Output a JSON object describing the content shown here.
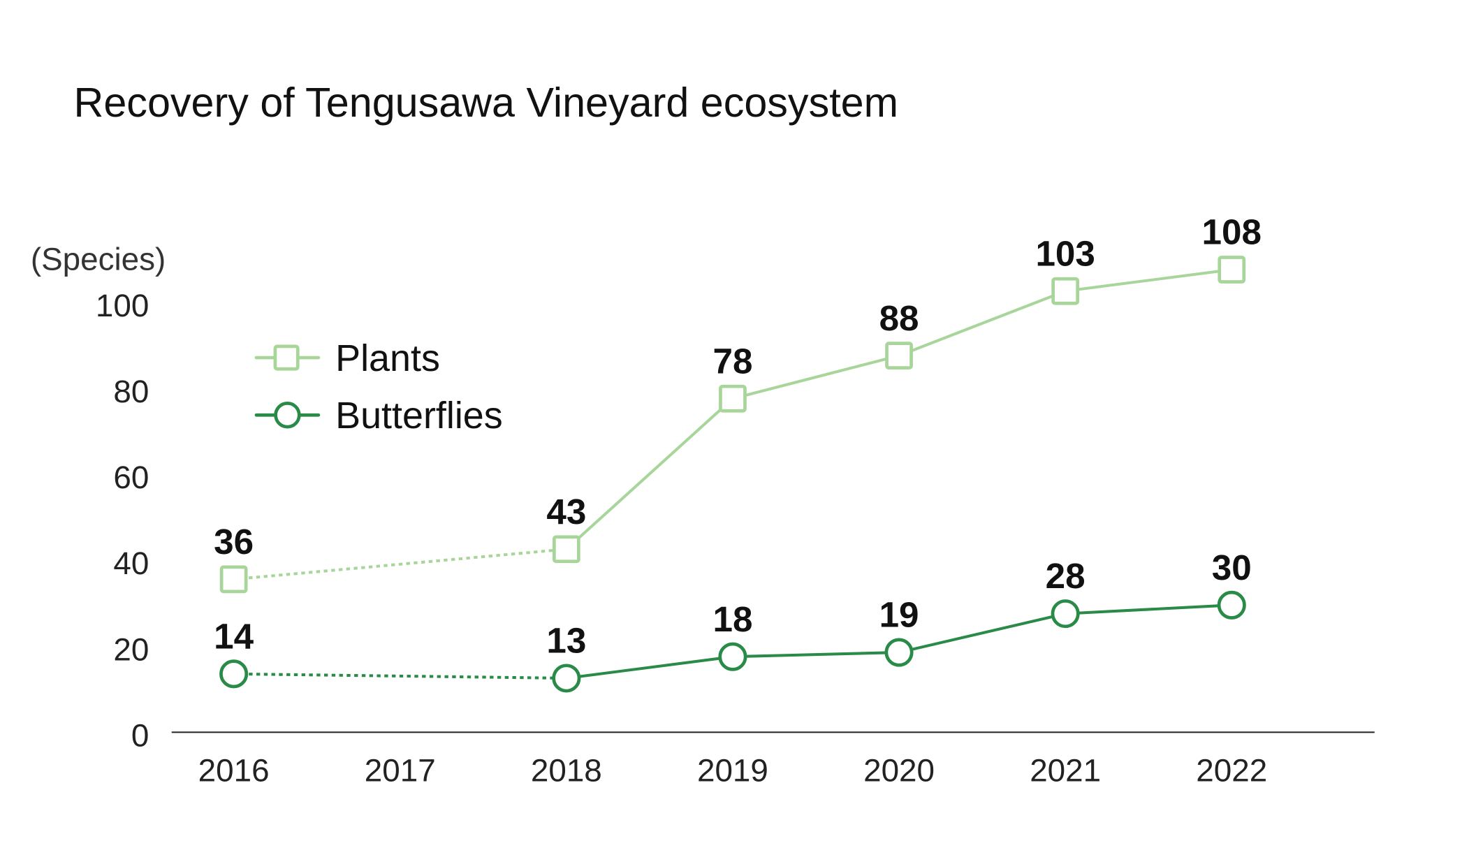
{
  "chart_data": {
    "type": "line",
    "title": "Recovery of Tengusawa Vineyard ecosystem",
    "ylabel": "(Species)",
    "xlabel": "",
    "categories": [
      "2016",
      "2017",
      "2018",
      "2019",
      "2020",
      "2021",
      "2022"
    ],
    "ylim": [
      0,
      100
    ],
    "yticks": [
      "0",
      "20",
      "40",
      "60",
      "80",
      "100"
    ],
    "grid": false,
    "legend_position": "top-left",
    "series": [
      {
        "name": "Plants",
        "marker": "square",
        "color": "#a8d59a",
        "values": [
          36,
          null,
          43,
          78,
          88,
          103,
          108
        ],
        "dotted_until_index": 2
      },
      {
        "name": "Butterflies",
        "marker": "circle",
        "color": "#2a8a47",
        "values": [
          14,
          null,
          13,
          18,
          19,
          28,
          30
        ],
        "dotted_until_index": 2
      }
    ]
  }
}
